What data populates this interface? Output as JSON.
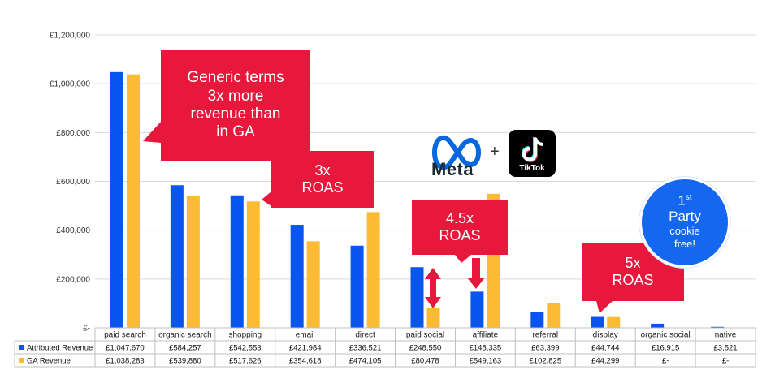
{
  "chart_data": {
    "type": "bar",
    "categories": [
      "paid search",
      "organic search",
      "shopping",
      "email",
      "direct",
      "paid social",
      "affiliate",
      "referral",
      "display",
      "organic social",
      "native"
    ],
    "series": [
      {
        "name": "Attributed Revenue",
        "color": "#0a55f0",
        "values": [
          1047670,
          584257,
          542553,
          421984,
          336521,
          248550,
          148335,
          63399,
          44744,
          16915,
          3521
        ],
        "labels": [
          "£1,047,670",
          "£584,257",
          "£542,553",
          "£421,984",
          "£336,521",
          "£248,550",
          "£148,335",
          "£63,399",
          "£44,744",
          "£16,915",
          "£3,521"
        ]
      },
      {
        "name": "GA Revenue",
        "color": "#fbbc34",
        "values": [
          1038283,
          539880,
          517626,
          354618,
          474105,
          80478,
          549163,
          102825,
          44299,
          0,
          0
        ],
        "labels": [
          "£1,038,283",
          "£539,880",
          "£517,626",
          "£354,618",
          "£474,105",
          "£80,478",
          "£549,163",
          "£102,825",
          "£44,299",
          "£-",
          "£-"
        ]
      }
    ],
    "ylim": [
      0,
      1200000
    ],
    "yticks": [
      "£-",
      "£200,000",
      "£400,000",
      "£600,000",
      "£800,000",
      "£1,000,000",
      "£1,200,000"
    ],
    "grid": true,
    "legend": "data-table"
  },
  "callouts": {
    "generic": [
      "Generic terms",
      "3x more",
      "revenue than",
      "in GA"
    ],
    "roas3": [
      "3x",
      "ROAS"
    ],
    "roas45": [
      "4.5x",
      "ROAS"
    ],
    "roas5": [
      "5x",
      "ROAS"
    ]
  },
  "badge": {
    "line1": "1",
    "sup": "st",
    "line2": "Party",
    "line3": "cookie",
    "line4": "free!"
  },
  "logos": {
    "meta_text": "Meta",
    "plus": "+",
    "tiktok_text": "TikTok",
    "meta_color": "#0668e1"
  },
  "colors": {
    "callout": "#e8173c",
    "badge": "#1467f0"
  }
}
